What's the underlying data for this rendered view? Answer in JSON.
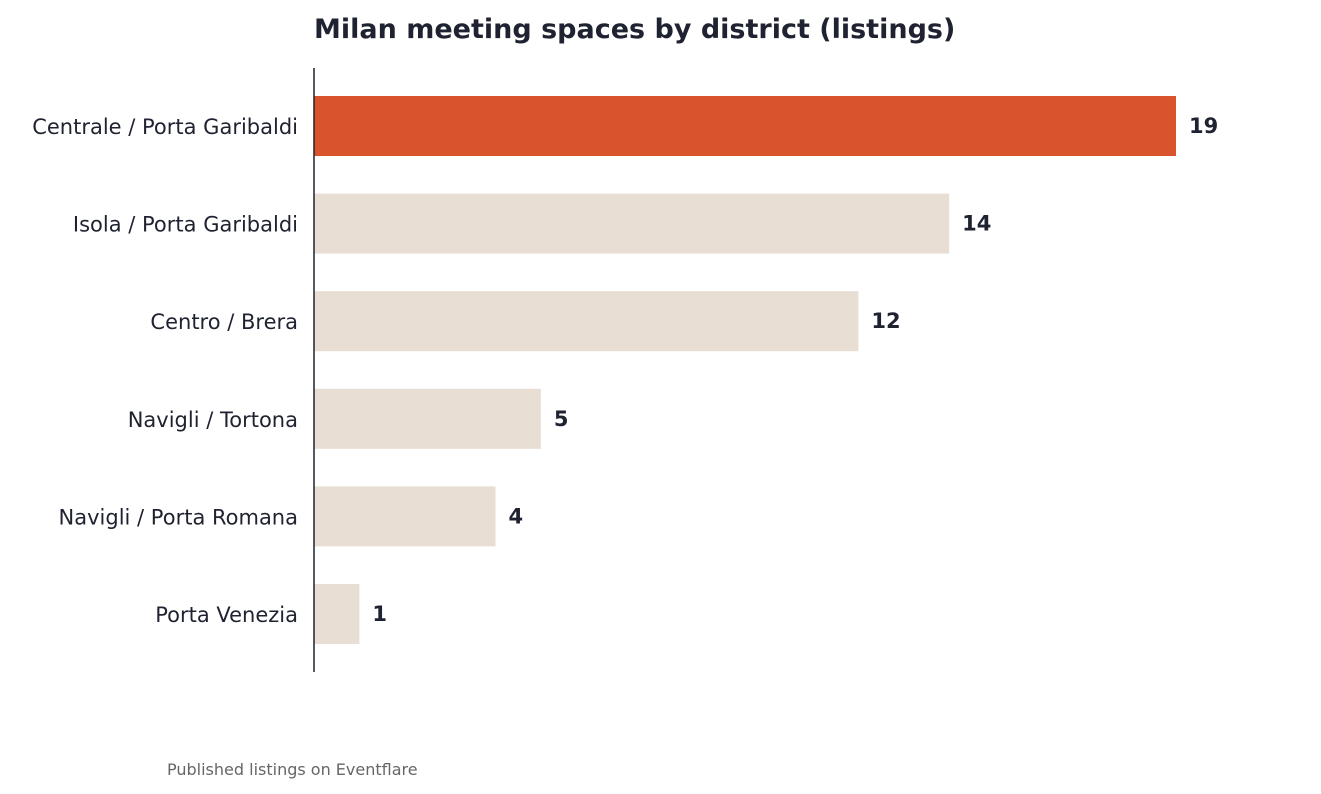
{
  "chart_data": {
    "type": "bar",
    "orientation": "horizontal",
    "title": "Milan meeting spaces by district (listings)",
    "xlabel": "",
    "ylabel": "",
    "categories": [
      "Centrale / Porta Garibaldi",
      "Isola / Porta Garibaldi",
      "Centro / Brera",
      "Navigli / Tortona",
      "Navigli / Porta Romana",
      "Porta Venezia"
    ],
    "values": [
      19,
      14,
      12,
      5,
      4,
      1
    ],
    "value_labels": [
      "19",
      "14",
      "12",
      "5",
      "4",
      "1"
    ],
    "highlight_index": 0,
    "xlim": [
      0,
      19
    ],
    "grid": false,
    "legend": "none"
  },
  "colors": {
    "highlight": "#d9532c",
    "bar": "#e8ded4",
    "text": "#1f2230",
    "axis": "#1f2230",
    "footnote": "#666666"
  },
  "footnote": "Published listings on Eventflare"
}
